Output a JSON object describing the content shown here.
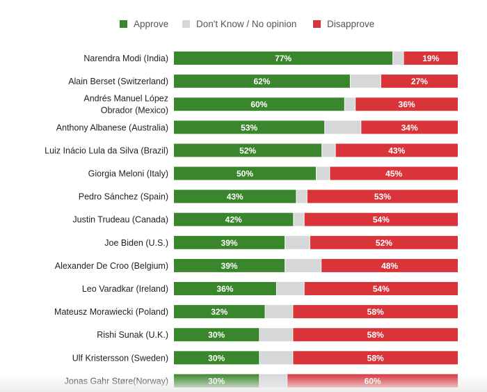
{
  "colors": {
    "approve": "#3a862c",
    "dont_know": "#d5d7d9",
    "disapprove": "#d9343a"
  },
  "chart_data": {
    "type": "bar",
    "orientation": "horizontal-stacked-100",
    "title": "",
    "xlabel": "",
    "ylabel": "",
    "legend_position": "top-center",
    "legend": [
      "Approve",
      "Don't Know / No opinion",
      "Disapprove"
    ],
    "categories": [
      [
        "Narendra Modi (India)"
      ],
      [
        "Alain Berset (Switzerland)"
      ],
      [
        "Andrés Manuel López",
        "Obrador (Mexico)"
      ],
      [
        "Anthony Albanese (Australia)"
      ],
      [
        "Luiz Inácio Lula da Silva (Brazil)"
      ],
      [
        "Giorgia Meloni (Italy)"
      ],
      [
        "Pedro Sánchez (Spain)"
      ],
      [
        "Justin Trudeau (Canada)"
      ],
      [
        "Joe Biden (U.S.)"
      ],
      [
        "Alexander De Croo (Belgium)"
      ],
      [
        "Leo Varadkar (Ireland)"
      ],
      [
        "Mateusz Morawiecki (Poland)"
      ],
      [
        "Rishi Sunak (U.K.)"
      ],
      [
        "Ulf Kristersson (Sweden)"
      ],
      [
        "Jonas Gahr Støre(Norway)"
      ]
    ],
    "series": [
      {
        "name": "Approve",
        "values": [
          77,
          62,
          60,
          53,
          52,
          50,
          43,
          42,
          39,
          39,
          36,
          32,
          30,
          30,
          30
        ]
      },
      {
        "name": "Don't Know / No opinion",
        "values": [
          4,
          11,
          4,
          13,
          5,
          5,
          4,
          4,
          9,
          13,
          10,
          10,
          12,
          12,
          10
        ]
      },
      {
        "name": "Disapprove",
        "values": [
          19,
          27,
          36,
          34,
          43,
          45,
          53,
          54,
          52,
          48,
          54,
          58,
          58,
          58,
          60
        ]
      }
    ],
    "value_labels": {
      "approve": [
        "77%",
        "62%",
        "60%",
        "53%",
        "52%",
        "50%",
        "43%",
        "42%",
        "39%",
        "39%",
        "36%",
        "32%",
        "30%",
        "30%",
        "30%"
      ],
      "disapprove": [
        "19%",
        "27%",
        "36%",
        "34%",
        "43%",
        "45%",
        "53%",
        "54%",
        "52%",
        "48%",
        "54%",
        "58%",
        "58%",
        "58%",
        "60%"
      ]
    },
    "xlim": [
      0,
      100
    ]
  }
}
